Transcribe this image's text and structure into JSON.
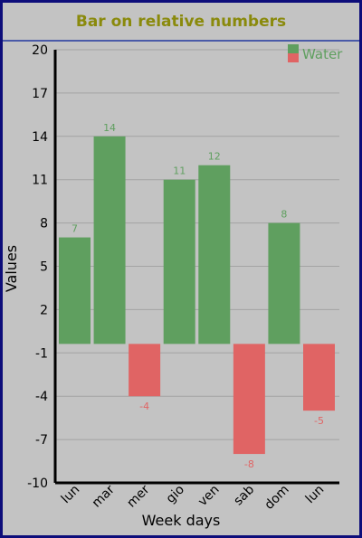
{
  "chart_data": {
    "type": "bar",
    "title": "Bar on relative numbers",
    "xlabel": "Week days",
    "ylabel": "Values",
    "categories": [
      "lun",
      "mar",
      "mer",
      "gio",
      "ven",
      "sab",
      "dom",
      "lun"
    ],
    "series": [
      {
        "name": "Water",
        "values": [
          7,
          14,
          -4,
          11,
          12,
          -8,
          8,
          -5
        ]
      }
    ],
    "ylim": [
      -10,
      20
    ],
    "yticks": [
      20,
      17,
      14,
      11,
      8,
      5,
      2,
      -1,
      -4,
      -7,
      -10
    ],
    "grid": true,
    "legend": "top-right",
    "colors": {
      "positive": "#5f9f5f",
      "negative": "#e06464",
      "positive_label": "#5f9f5f",
      "negative_label": "#e06464"
    }
  }
}
